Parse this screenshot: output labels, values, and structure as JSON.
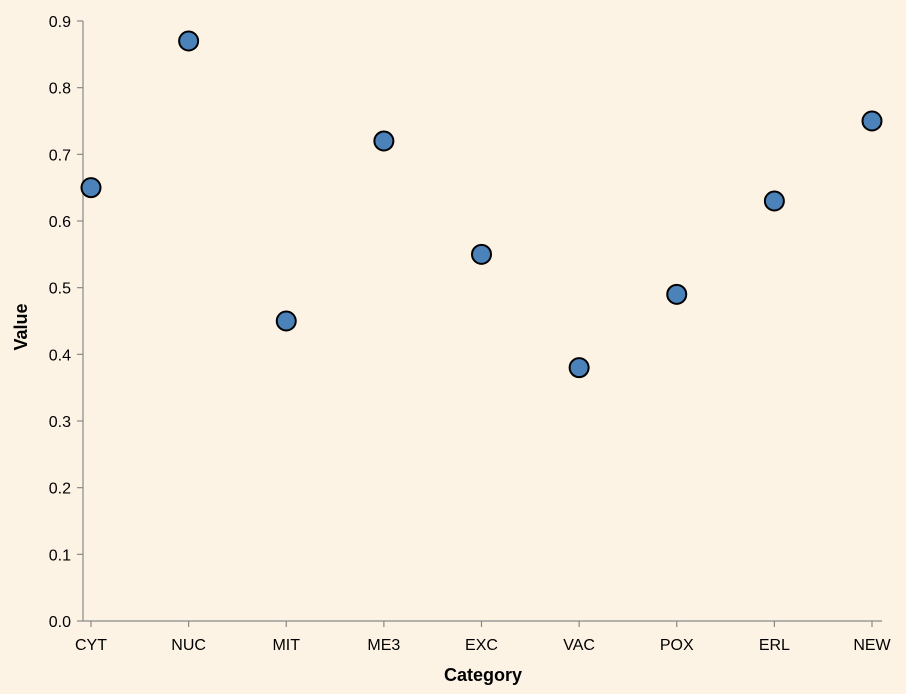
{
  "colors": {
    "background": "#fdf3e5",
    "point_fill": "#4b82ba",
    "point_stroke": "#000000",
    "axis": "#888888"
  },
  "chart_data": {
    "type": "scatter",
    "title": "",
    "xlabel": "Category",
    "ylabel": "Value",
    "categories": [
      "CYT",
      "NUC",
      "MIT",
      "ME3",
      "EXC",
      "VAC",
      "POX",
      "ERL",
      "NEW"
    ],
    "values": [
      0.65,
      0.87,
      0.45,
      0.72,
      0.55,
      0.38,
      0.49,
      0.63,
      0.75
    ],
    "ylim": [
      0,
      0.9
    ],
    "yticks": [
      "0.0",
      "0.1",
      "0.2",
      "0.3",
      "0.4",
      "0.5",
      "0.6",
      "0.7",
      "0.8",
      "0.9"
    ],
    "grid": false,
    "legend": "none"
  }
}
